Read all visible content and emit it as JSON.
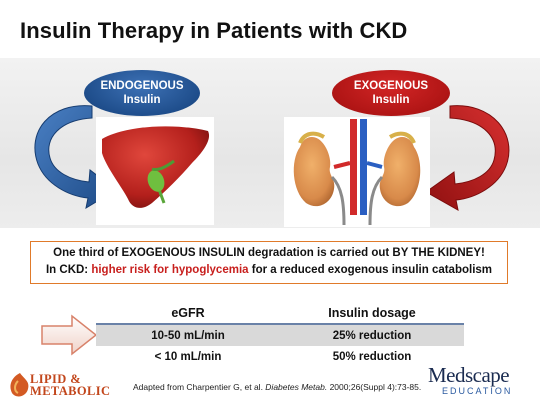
{
  "slide": {
    "title": "Insulin Therapy in Patients with CKD",
    "endogenous": {
      "line1": "ENDOGENOUS",
      "line2": "Insulin",
      "color": "#1f4e8c"
    },
    "exogenous": {
      "line1": "EXOGENOUS",
      "line2": "Insulin",
      "color": "#b01515"
    },
    "images": {
      "left": "liver-image",
      "right": "kidney-image"
    },
    "info": {
      "line1": "One third of EXOGENOUS INSULIN degradation is carried out BY THE KIDNEY!",
      "line2_prefix": "In CKD:  ",
      "line2_highlight": "higher risk for hypoglycemia",
      "line2_suffix": " for a reduced exogenous insulin catabolism",
      "highlight_color": "#c8201e",
      "border_color": "#e07a2a"
    },
    "table": {
      "headers": [
        "eGFR",
        "Insulin dosage"
      ],
      "rows": [
        [
          "10-50 mL/min",
          "25% reduction"
        ],
        [
          "< 10 mL/min",
          "50% reduction"
        ]
      ]
    },
    "footer": {
      "logo_left_line1": "LIPID &",
      "logo_left_line2": "METABOLIC",
      "citation_prefix": "Adapted from Charpentier G, et al. ",
      "citation_journal": "Diabetes Metab.",
      "citation_suffix": " 2000;26(Suppl 4):73-85.",
      "logo_right_line1": "Medscape",
      "logo_right_line2": "EDUCATION"
    }
  }
}
